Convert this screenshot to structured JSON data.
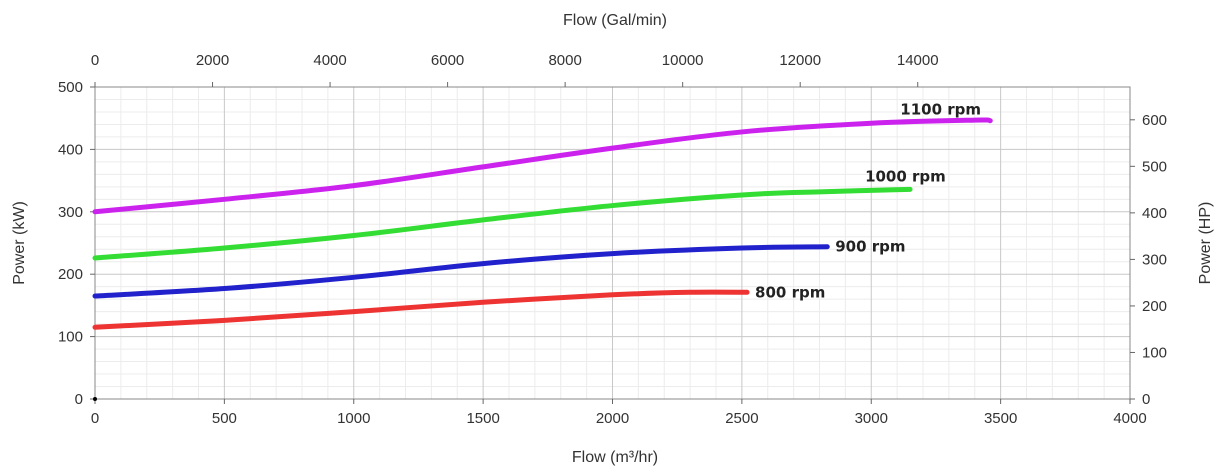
{
  "chart_data": {
    "type": "line",
    "x_bottom": {
      "label": "Flow (m³/hr)",
      "range": [
        0,
        4000
      ],
      "ticks": [
        0,
        500,
        1000,
        1500,
        2000,
        2500,
        3000,
        3500,
        4000
      ],
      "tick_labels": [
        "0",
        "500",
        "1000",
        "1500",
        "2000",
        "2500",
        "3000",
        "3500",
        "4000"
      ]
    },
    "x_top": {
      "label": "Flow (Gal/min)",
      "range": [
        0,
        17612
      ],
      "ticks": [
        0,
        2000,
        4000,
        6000,
        8000,
        10000,
        12000,
        14000
      ],
      "tick_labels": [
        "0",
        "2000",
        "4000",
        "6000",
        "8000",
        "10000",
        "12000",
        "14000"
      ]
    },
    "y_left": {
      "label": "Power (kW)",
      "range": [
        0,
        500
      ],
      "ticks": [
        0,
        100,
        200,
        300,
        400,
        500
      ],
      "tick_labels": [
        "0",
        "100",
        "200",
        "300",
        "400",
        "500"
      ]
    },
    "y_right": {
      "label": "Power (HP)",
      "range": [
        0,
        670.5
      ],
      "ticks": [
        0,
        100,
        200,
        300,
        400,
        500,
        600
      ],
      "tick_labels": [
        "0",
        "100",
        "200",
        "300",
        "400",
        "500",
        "600"
      ]
    },
    "grid": true,
    "series": [
      {
        "name": "1100 rpm",
        "color": "#cc22ee",
        "x": [
          0,
          500,
          1000,
          1500,
          2000,
          2500,
          3000,
          3400,
          3460
        ],
        "y": [
          300,
          320,
          342,
          372,
          402,
          428,
          442,
          447,
          446
        ]
      },
      {
        "name": "1000 rpm",
        "color": "#33dd33",
        "x": [
          0,
          500,
          1000,
          1500,
          2000,
          2500,
          2800,
          3150
        ],
        "y": [
          226,
          242,
          262,
          287,
          310,
          327,
          332,
          336
        ]
      },
      {
        "name": "900 rpm",
        "color": "#2222cc",
        "x": [
          0,
          500,
          1000,
          1500,
          2000,
          2500,
          2830
        ],
        "y": [
          165,
          177,
          195,
          217,
          233,
          242,
          244
        ]
      },
      {
        "name": "800 rpm",
        "color": "#ee3333",
        "x": [
          0,
          500,
          1000,
          1500,
          2000,
          2300,
          2520
        ],
        "y": [
          115,
          126,
          140,
          155,
          167,
          171,
          171
        ]
      }
    ]
  }
}
